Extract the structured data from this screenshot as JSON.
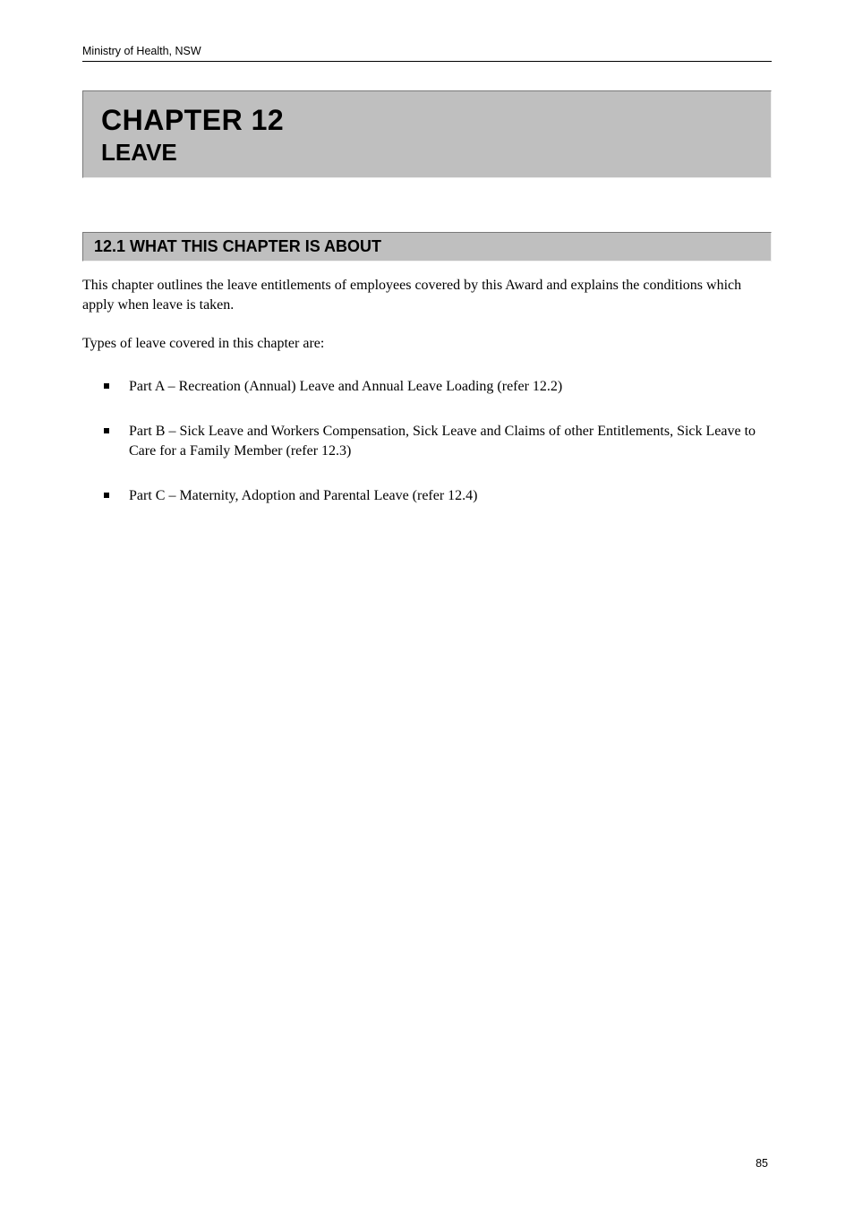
{
  "header": "Ministry of Health, NSW",
  "chapter": {
    "number": "12",
    "label": "CHAPTER 12",
    "title": "LEAVE"
  },
  "section": {
    "number": "12.1",
    "heading": "12.1 WHAT THIS CHAPTER IS ABOUT"
  },
  "intro": "This chapter outlines the leave entitlements of employees covered by this Award and explains the conditions which apply when leave is taken.",
  "bulletIntro": "Types of leave covered in this chapter are:",
  "bullets": [
    "Part A – Recreation (Annual) Leave and Annual Leave Loading (refer 12.2)",
    "Part B – Sick Leave and Workers Compensation, Sick Leave and Claims of other Entitlements, Sick Leave to Care for a Family Member (refer 12.3)",
    "Part C – Maternity, Adoption and Parental Leave (refer 12.4)"
  ],
  "pageNumber": "85"
}
